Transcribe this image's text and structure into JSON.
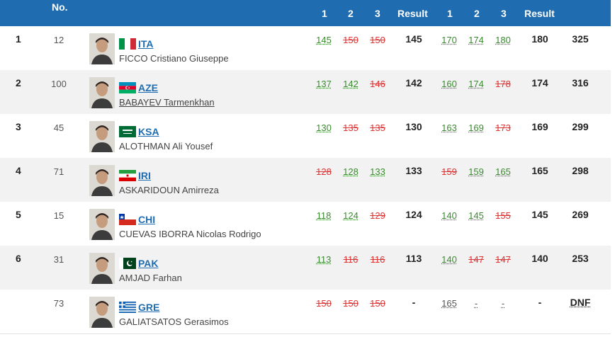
{
  "header": {
    "no": "No.",
    "snatch_attempts": [
      "1",
      "2",
      "3"
    ],
    "snatch_result": "Result",
    "cj_attempts": [
      "1",
      "2",
      "3"
    ],
    "cj_result": "Result"
  },
  "colors": {
    "header_bg": "#1f6db0",
    "good": "#3a8a2f",
    "bad": "#dd3333",
    "link": "#1f6db0"
  },
  "rows": [
    {
      "rank": "1",
      "no": "12",
      "nation": "ITA",
      "flag": "italy-flag",
      "name": "FICCO Cristiano Giuseppe",
      "name_link": false,
      "snatch": [
        {
          "v": "145",
          "s": "good"
        },
        {
          "v": "150",
          "s": "bad"
        },
        {
          "v": "150",
          "s": "bad"
        }
      ],
      "snatch_result": "145",
      "cj": [
        {
          "v": "170",
          "s": "good"
        },
        {
          "v": "174",
          "s": "good"
        },
        {
          "v": "180",
          "s": "good"
        }
      ],
      "cj_result": "180",
      "total": "325"
    },
    {
      "rank": "2",
      "no": "100",
      "nation": "AZE",
      "flag": "azerbaijan-flag",
      "name": "BABAYEV Tarmenkhan",
      "name_link": true,
      "snatch": [
        {
          "v": "137",
          "s": "good"
        },
        {
          "v": "142",
          "s": "good"
        },
        {
          "v": "146",
          "s": "bad"
        }
      ],
      "snatch_result": "142",
      "cj": [
        {
          "v": "160",
          "s": "good"
        },
        {
          "v": "174",
          "s": "good"
        },
        {
          "v": "178",
          "s": "bad"
        }
      ],
      "cj_result": "174",
      "total": "316"
    },
    {
      "rank": "3",
      "no": "45",
      "nation": "KSA",
      "flag": "saudi-flag",
      "name": "ALOTHMAN Ali Yousef",
      "name_link": false,
      "snatch": [
        {
          "v": "130",
          "s": "good"
        },
        {
          "v": "135",
          "s": "bad"
        },
        {
          "v": "135",
          "s": "bad"
        }
      ],
      "snatch_result": "130",
      "cj": [
        {
          "v": "163",
          "s": "good"
        },
        {
          "v": "169",
          "s": "good"
        },
        {
          "v": "173",
          "s": "bad"
        }
      ],
      "cj_result": "169",
      "total": "299"
    },
    {
      "rank": "4",
      "no": "71",
      "nation": "IRI",
      "flag": "iran-flag",
      "name": "ASKARIDOUN Amirreza",
      "name_link": false,
      "snatch": [
        {
          "v": "128",
          "s": "bad"
        },
        {
          "v": "128",
          "s": "good"
        },
        {
          "v": "133",
          "s": "good"
        }
      ],
      "snatch_result": "133",
      "cj": [
        {
          "v": "159",
          "s": "bad"
        },
        {
          "v": "159",
          "s": "good"
        },
        {
          "v": "165",
          "s": "good"
        }
      ],
      "cj_result": "165",
      "total": "298"
    },
    {
      "rank": "5",
      "no": "15",
      "nation": "CHI",
      "flag": "chile-flag",
      "name": "CUEVAS IBORRA Nicolas Rodrigo",
      "name_link": false,
      "snatch": [
        {
          "v": "118",
          "s": "good"
        },
        {
          "v": "124",
          "s": "good"
        },
        {
          "v": "129",
          "s": "bad"
        }
      ],
      "snatch_result": "124",
      "cj": [
        {
          "v": "140",
          "s": "good"
        },
        {
          "v": "145",
          "s": "good"
        },
        {
          "v": "155",
          "s": "bad"
        }
      ],
      "cj_result": "145",
      "total": "269"
    },
    {
      "rank": "6",
      "no": "31",
      "nation": "PAK",
      "flag": "pakistan-flag",
      "name": "AMJAD Farhan",
      "name_link": false,
      "snatch": [
        {
          "v": "113",
          "s": "good"
        },
        {
          "v": "116",
          "s": "bad"
        },
        {
          "v": "116",
          "s": "bad"
        }
      ],
      "snatch_result": "113",
      "cj": [
        {
          "v": "140",
          "s": "good"
        },
        {
          "v": "147",
          "s": "bad"
        },
        {
          "v": "147",
          "s": "bad"
        }
      ],
      "cj_result": "140",
      "total": "253"
    },
    {
      "rank": "",
      "no": "73",
      "nation": "GRE",
      "flag": "greece-flag",
      "name": "GALIATSATOS Gerasimos",
      "name_link": false,
      "snatch": [
        {
          "v": "150",
          "s": "bad"
        },
        {
          "v": "150",
          "s": "bad"
        },
        {
          "v": "150",
          "s": "bad"
        }
      ],
      "snatch_result": "-",
      "cj": [
        {
          "v": "165",
          "s": "none"
        },
        {
          "v": "-",
          "s": "none"
        },
        {
          "v": "-",
          "s": "none"
        }
      ],
      "cj_result": "-",
      "total": "DNF"
    }
  ]
}
